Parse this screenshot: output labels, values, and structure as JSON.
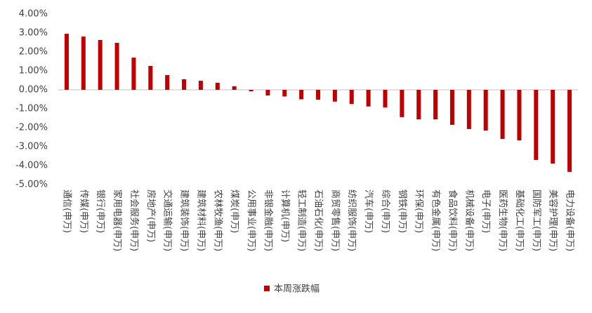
{
  "chart_data": {
    "type": "bar",
    "categories": [
      "通信(申万)",
      "传媒(申万)",
      "银行(申万)",
      "家用电器(申万)",
      "社会服务(申万)",
      "房地产(申万)",
      "交通运输(申万)",
      "建筑装饰(申万)",
      "建筑材料(申万)",
      "农林牧渔(申万)",
      "煤炭(申万)",
      "公用事业(申万)",
      "非银金融(申万)",
      "计算机(申万)",
      "轻工制造(申万)",
      "石油石化(申万)",
      "商贸零售(申万)",
      "纺织服饰(申万)",
      "汽车(申万)",
      "综合(申万)",
      "钢铁(申万)",
      "环保(申万)",
      "有色金属(申万)",
      "食品饮料(申万)",
      "机械设备(申万)",
      "电子(申万)",
      "医药生物(申万)",
      "基础化工(申万)",
      "国防军工(申万)",
      "美容护理(申万)",
      "电力设备(申万)"
    ],
    "series": [
      {
        "name": "本周涨跌幅",
        "color": "#c00000",
        "values": [
          2.96,
          2.81,
          2.63,
          2.48,
          1.7,
          1.26,
          0.78,
          0.56,
          0.48,
          0.37,
          0.19,
          -0.08,
          -0.3,
          -0.35,
          -0.5,
          -0.52,
          -0.62,
          -0.75,
          -0.88,
          -0.93,
          -1.44,
          -1.56,
          -1.56,
          -1.85,
          -2.07,
          -2.15,
          -2.59,
          -2.67,
          -3.7,
          -3.89,
          -4.33
        ]
      }
    ],
    "ylim": [
      -5,
      4
    ],
    "yticks": [
      {
        "value": -5,
        "label": "-5.00%"
      },
      {
        "value": -4,
        "label": "-4.00%"
      },
      {
        "value": -3,
        "label": "-3.00%"
      },
      {
        "value": -2,
        "label": "-2.00%"
      },
      {
        "value": -1,
        "label": "-1.00%"
      },
      {
        "value": 0,
        "label": "0.00%"
      },
      {
        "value": 1,
        "label": "1.00%"
      },
      {
        "value": 2,
        "label": "2.00%"
      },
      {
        "value": 3,
        "label": "3.00%"
      },
      {
        "value": 4,
        "label": "4.00%"
      }
    ],
    "legend": "bottom"
  }
}
